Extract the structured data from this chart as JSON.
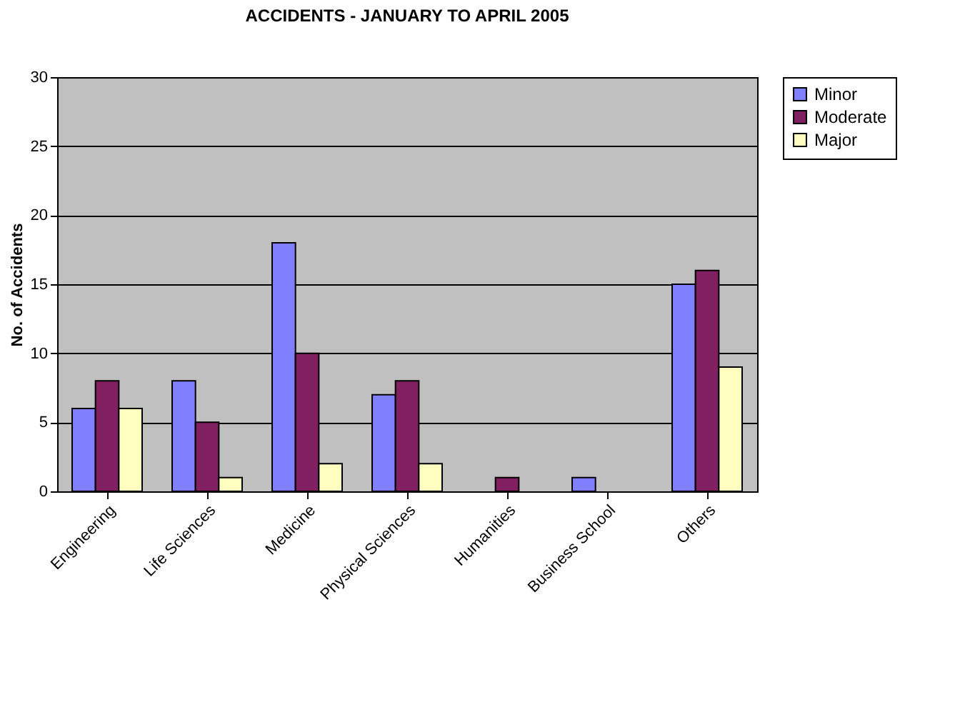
{
  "chart_data": {
    "type": "bar",
    "title": "ACCIDENTS - JANUARY TO APRIL  2005",
    "ylabel": "No. of Accidents",
    "categories": [
      "Engineering",
      "Life Sciences",
      "Medicine",
      "Physical Sciences",
      "Humanities",
      "Business School",
      "Others"
    ],
    "series": [
      {
        "name": "Minor",
        "color": "#8080ff",
        "values": [
          6,
          8,
          18,
          7,
          0,
          1,
          15
        ]
      },
      {
        "name": "Moderate",
        "color": "#802060",
        "values": [
          8,
          5,
          10,
          8,
          1,
          0,
          16
        ]
      },
      {
        "name": "Major",
        "color": "#ffffc0",
        "values": [
          6,
          1,
          2,
          2,
          0,
          0,
          9
        ]
      }
    ],
    "ylim": [
      0,
      30
    ],
    "yticks": [
      0,
      5,
      10,
      15,
      20,
      25,
      30
    ],
    "grid": "y",
    "legend": "right"
  }
}
